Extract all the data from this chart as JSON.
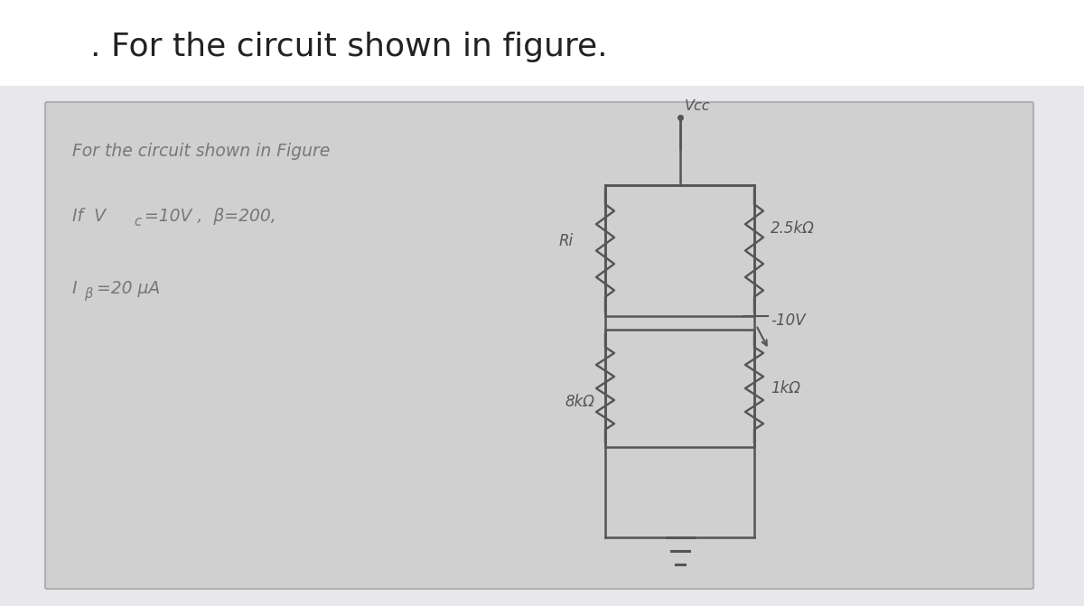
{
  "title": ". For the circuit shown in figure.",
  "title_fontsize": 26,
  "bg_color": "#e8e8ec",
  "paper_color": "#d8d8d8",
  "paper_border": "#aaaaaa",
  "line_color": "#707070",
  "circuit_line_color": "#555555",
  "text_color": "#787878",
  "circuit": {
    "vcc_label": "Vcc",
    "r1_label": "2.5kΩ",
    "v_label": "-10V",
    "ri_label": "Ri",
    "r2_label": "8kΩ",
    "r3_label": "1kΩ"
  }
}
